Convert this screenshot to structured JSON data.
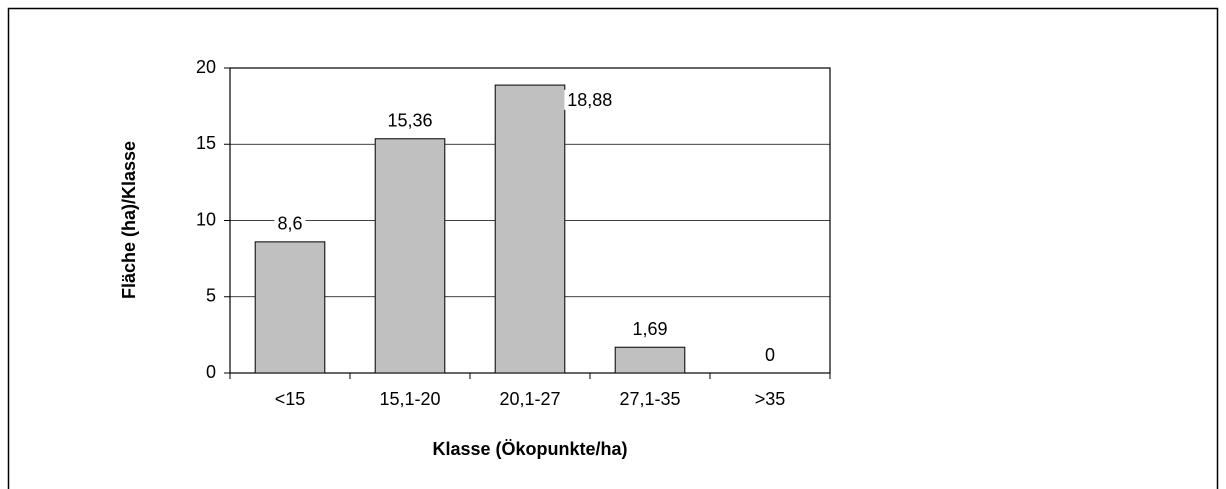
{
  "chart_data": {
    "type": "bar",
    "xlabel": "Klasse (Ökopunkte/ha)",
    "ylabel": "Fläche (ha)/Klasse",
    "categories": [
      "<15",
      "15,1-20",
      "20,1-27",
      "27,1-35",
      ">35"
    ],
    "values": [
      8.6,
      15.36,
      18.88,
      1.69,
      0
    ],
    "value_labels": [
      "8,6",
      "15,36",
      "18,88",
      "1,69",
      "0"
    ],
    "color": "#c0c0c0",
    "ylim": [
      0,
      20
    ],
    "yticks": [
      0,
      5,
      10,
      15,
      20
    ],
    "grid": true
  }
}
